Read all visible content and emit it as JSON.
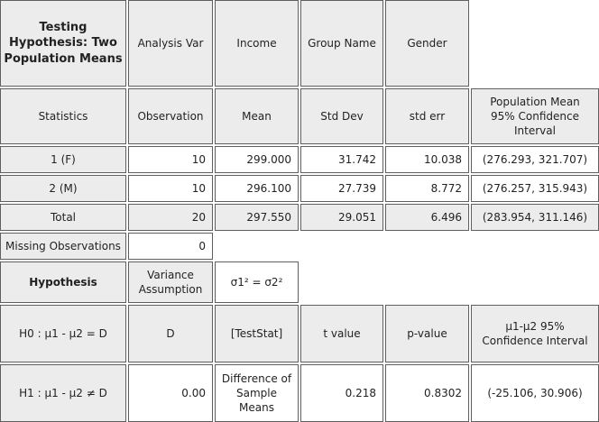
{
  "header": {
    "title": "Testing Hypothesis: Two Population Means",
    "analysis_var_label": "Analysis Var",
    "analysis_var_value": "Income",
    "group_name_label": "Group Name",
    "group_name_value": "Gender"
  },
  "stats_header": {
    "statistics": "Statistics",
    "observation": "Observation",
    "mean": "Mean",
    "std_dev": "Std Dev",
    "std_err": "std err",
    "ci": "Population Mean 95% Confidence Interval"
  },
  "rows": [
    {
      "label": "1 (F)",
      "obs": "10",
      "mean": "299.000",
      "sd": "31.742",
      "se": "10.038",
      "ci": "(276.293, 321.707)"
    },
    {
      "label": "2 (M)",
      "obs": "10",
      "mean": "296.100",
      "sd": "27.739",
      "se": "8.772",
      "ci": "(276.257, 315.943)"
    },
    {
      "label": "Total",
      "obs": "20",
      "mean": "297.550",
      "sd": "29.051",
      "se": "6.496",
      "ci": "(283.954, 311.146)"
    }
  ],
  "missing": {
    "label": "Missing Observations",
    "value": "0"
  },
  "hypothesis": {
    "label": "Hypothesis",
    "variance_label": "Variance Assumption",
    "variance_value": "σ1² = σ2²"
  },
  "test_header": {
    "h0": "H0 : μ1 - μ2 = D",
    "d": "D",
    "teststat": "[TestStat]",
    "t_value": "t value",
    "p_value": "p-value",
    "ci": "μ1-μ2 95% Confidence Interval"
  },
  "test_row": {
    "h1": "H1 : μ1 - μ2 ≠ D",
    "d_value": "0.00",
    "teststat_value": "Difference of Sample Means",
    "t_value": "0.218",
    "p_value": "0.8302",
    "ci": "(-25.106, 30.906)"
  }
}
